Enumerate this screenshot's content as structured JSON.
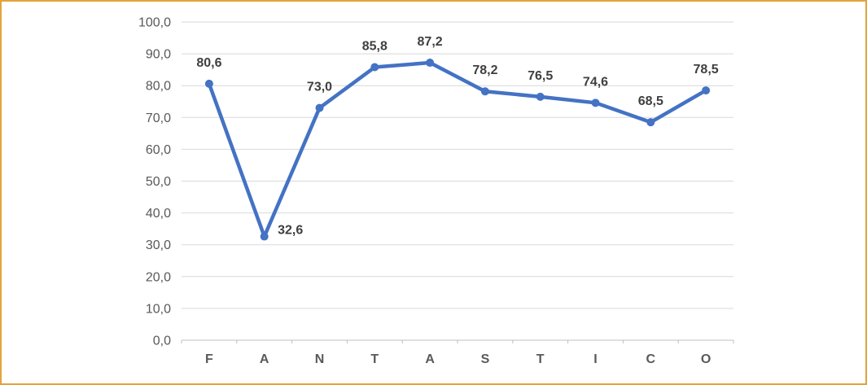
{
  "chart_data": {
    "type": "line",
    "categories": [
      "F",
      "A",
      "N",
      "T",
      "A",
      "S",
      "T",
      "I",
      "C",
      "O"
    ],
    "values": [
      80.6,
      32.6,
      73.0,
      85.8,
      87.2,
      78.2,
      76.5,
      74.6,
      68.5,
      78.5
    ],
    "data_labels": [
      "80,6",
      "32,6",
      "73,0",
      "85,8",
      "87,2",
      "78,2",
      "76,5",
      "74,6",
      "68,5",
      "78,5"
    ],
    "data_label_positions": [
      "above",
      "right",
      "above",
      "above",
      "above",
      "above",
      "above",
      "above",
      "above",
      "above"
    ],
    "y_axis": {
      "min": 0,
      "max": 100,
      "step": 10,
      "tick_labels_top_to_bottom": [
        "100,0",
        "90,0",
        "80,0",
        "70,0",
        "60,0",
        "50,0",
        "40,0",
        "30,0",
        "20,0",
        "10,0",
        "0,0"
      ]
    },
    "grid": true,
    "legend": "none",
    "colors": {
      "series": "#4472C4",
      "marker": "#4472C4",
      "gridline": "#D9D9D9",
      "axis_line": "#BFBFBF",
      "data_label": "#3F3F3F",
      "axis_label": "#595959",
      "frame_border": "#E2A33D",
      "background": "#FFFFFF"
    }
  }
}
